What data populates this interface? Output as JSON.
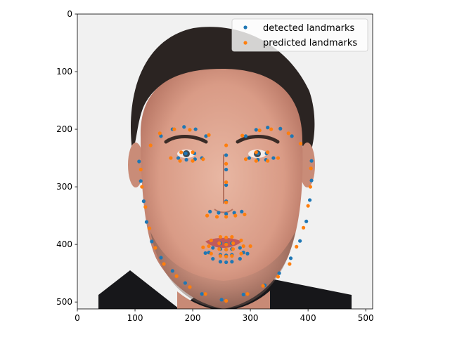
{
  "chart_data": {
    "type": "scatter",
    "title": "",
    "xlabel": "",
    "ylabel": "",
    "xlim": [
      0,
      512
    ],
    "ylim": [
      512,
      0
    ],
    "y_inverted": true,
    "grid": false,
    "legend_position": "top-right",
    "x_ticks": [
      0,
      100,
      200,
      300,
      400,
      500
    ],
    "y_ticks": [
      0,
      100,
      200,
      300,
      400,
      500
    ],
    "background": "photograph of a man's face (portrait) filling the axes",
    "series": [
      {
        "name": "detected landmarks",
        "color": "#1f77b4",
        "points": [
          [
            107,
            256
          ],
          [
            110,
            290
          ],
          [
            115,
            325
          ],
          [
            120,
            361
          ],
          [
            129,
            395
          ],
          [
            145,
            423
          ],
          [
            165,
            446
          ],
          [
            187,
            467
          ],
          [
            216,
            486
          ],
          [
            250,
            496
          ],
          [
            288,
            487
          ],
          [
            325,
            471
          ],
          [
            350,
            450
          ],
          [
            370,
            424
          ],
          [
            386,
            394
          ],
          [
            397,
            360
          ],
          [
            403,
            323
          ],
          [
            406,
            289
          ],
          [
            406,
            255
          ],
          [
            145,
            212
          ],
          [
            165,
            200
          ],
          [
            185,
            196
          ],
          [
            205,
            200
          ],
          [
            223,
            212
          ],
          [
            292,
            212
          ],
          [
            310,
            201
          ],
          [
            330,
            197
          ],
          [
            352,
            199
          ],
          [
            372,
            212
          ],
          [
            258,
            245
          ],
          [
            258,
            270
          ],
          [
            258,
            297
          ],
          [
            258,
            325
          ],
          [
            230,
            343
          ],
          [
            245,
            345
          ],
          [
            258,
            347
          ],
          [
            272,
            345
          ],
          [
            285,
            343
          ],
          [
            175,
            250
          ],
          [
            188,
            242
          ],
          [
            203,
            242
          ],
          [
            216,
            250
          ],
          [
            204,
            252
          ],
          [
            189,
            253
          ],
          [
            298,
            250
          ],
          [
            313,
            242
          ],
          [
            328,
            242
          ],
          [
            340,
            250
          ],
          [
            327,
            253
          ],
          [
            313,
            253
          ],
          [
            222,
            415
          ],
          [
            235,
            406
          ],
          [
            248,
            398
          ],
          [
            258,
            399
          ],
          [
            268,
            398
          ],
          [
            282,
            406
          ],
          [
            295,
            416
          ],
          [
            282,
            425
          ],
          [
            268,
            430
          ],
          [
            258,
            431
          ],
          [
            248,
            430
          ],
          [
            235,
            425
          ],
          [
            228,
            414
          ],
          [
            248,
            408
          ],
          [
            258,
            409
          ],
          [
            268,
            408
          ],
          [
            288,
            414
          ],
          [
            268,
            418
          ],
          [
            258,
            419
          ],
          [
            248,
            418
          ]
        ]
      },
      {
        "name": "predicted landmarks",
        "color": "#ff7f0e",
        "points": [
          [
            110,
            270
          ],
          [
            112,
            300
          ],
          [
            118,
            335
          ],
          [
            125,
            372
          ],
          [
            135,
            406
          ],
          [
            150,
            434
          ],
          [
            172,
            455
          ],
          [
            195,
            474
          ],
          [
            222,
            486
          ],
          [
            258,
            498
          ],
          [
            295,
            486
          ],
          [
            322,
            472
          ],
          [
            348,
            456
          ],
          [
            368,
            434
          ],
          [
            380,
            404
          ],
          [
            392,
            371
          ],
          [
            400,
            333
          ],
          [
            404,
            300
          ],
          [
            405,
            268
          ],
          [
            127,
            228
          ],
          [
            143,
            207
          ],
          [
            168,
            200
          ],
          [
            195,
            201
          ],
          [
            228,
            210
          ],
          [
            286,
            211
          ],
          [
            316,
            202
          ],
          [
            336,
            200
          ],
          [
            366,
            207
          ],
          [
            387,
            225
          ],
          [
            258,
            228
          ],
          [
            258,
            260
          ],
          [
            258,
            292
          ],
          [
            258,
            327
          ],
          [
            225,
            350
          ],
          [
            242,
            352
          ],
          [
            258,
            352
          ],
          [
            274,
            350
          ],
          [
            290,
            348
          ],
          [
            162,
            250
          ],
          [
            180,
            240
          ],
          [
            200,
            240
          ],
          [
            218,
            252
          ],
          [
            200,
            255
          ],
          [
            178,
            255
          ],
          [
            292,
            252
          ],
          [
            310,
            240
          ],
          [
            330,
            240
          ],
          [
            348,
            250
          ],
          [
            330,
            255
          ],
          [
            310,
            255
          ],
          [
            218,
            405
          ],
          [
            232,
            393
          ],
          [
            248,
            387
          ],
          [
            258,
            388
          ],
          [
            268,
            387
          ],
          [
            284,
            393
          ],
          [
            300,
            403
          ],
          [
            284,
            416
          ],
          [
            268,
            420
          ],
          [
            258,
            421
          ],
          [
            248,
            420
          ],
          [
            232,
            416
          ],
          [
            228,
            403
          ],
          [
            246,
            398
          ],
          [
            258,
            400
          ],
          [
            270,
            398
          ],
          [
            288,
            403
          ],
          [
            270,
            408
          ],
          [
            258,
            409
          ],
          [
            246,
            408
          ]
        ]
      }
    ]
  }
}
